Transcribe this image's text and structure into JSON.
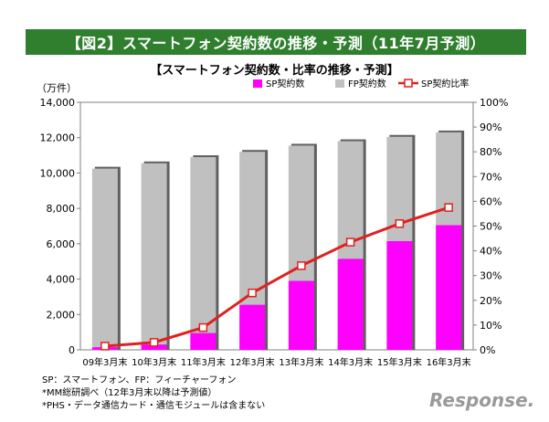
{
  "header": {
    "banner": "【図2】スマートフォン契約数の推移・予測（11年7月予測）"
  },
  "chart_data": {
    "type": "bar",
    "title": "【スマートフォン契約数・比率の推移・予測】",
    "ylabel": "（万件）",
    "ylim": [
      0,
      14000
    ],
    "y2lim": [
      0,
      100
    ],
    "yticks": [
      "0",
      "2,000",
      "4,000",
      "6,000",
      "8,000",
      "10,000",
      "12,000",
      "14,000"
    ],
    "y2ticks": [
      "0%",
      "10%",
      "20%",
      "30%",
      "40%",
      "50%",
      "60%",
      "70%",
      "80%",
      "90%",
      "100%"
    ],
    "categories": [
      "09年3月末",
      "10年3月末",
      "11年3月末",
      "12年3月末",
      "13年3月末",
      "14年3月末",
      "15年3月末",
      "16年3月末"
    ],
    "series": [
      {
        "name": "SP契約数",
        "color": "#ff00ff",
        "values": [
          150,
          300,
          950,
          2550,
          3900,
          5150,
          6150,
          7050
        ]
      },
      {
        "name": "FP契約数",
        "color": "#c0c0c0",
        "values": [
          10100,
          10250,
          9950,
          8650,
          7650,
          6650,
          5900,
          5250
        ]
      },
      {
        "name": "SP契約比率",
        "color": "#e02020",
        "axis": "right",
        "values": [
          1.5,
          3.0,
          9.0,
          23.0,
          34.0,
          43.5,
          51.0,
          57.5
        ]
      }
    ],
    "legend": "top-right",
    "grid": false
  },
  "notes": [
    "SP：スマートフォン、FP：フィーチャーフォン",
    "*MM総研調べ（12年3月末以降は予測値）",
    "*PHS・データ通信カード・通信モジュールは含まない"
  ],
  "logo": "Response."
}
